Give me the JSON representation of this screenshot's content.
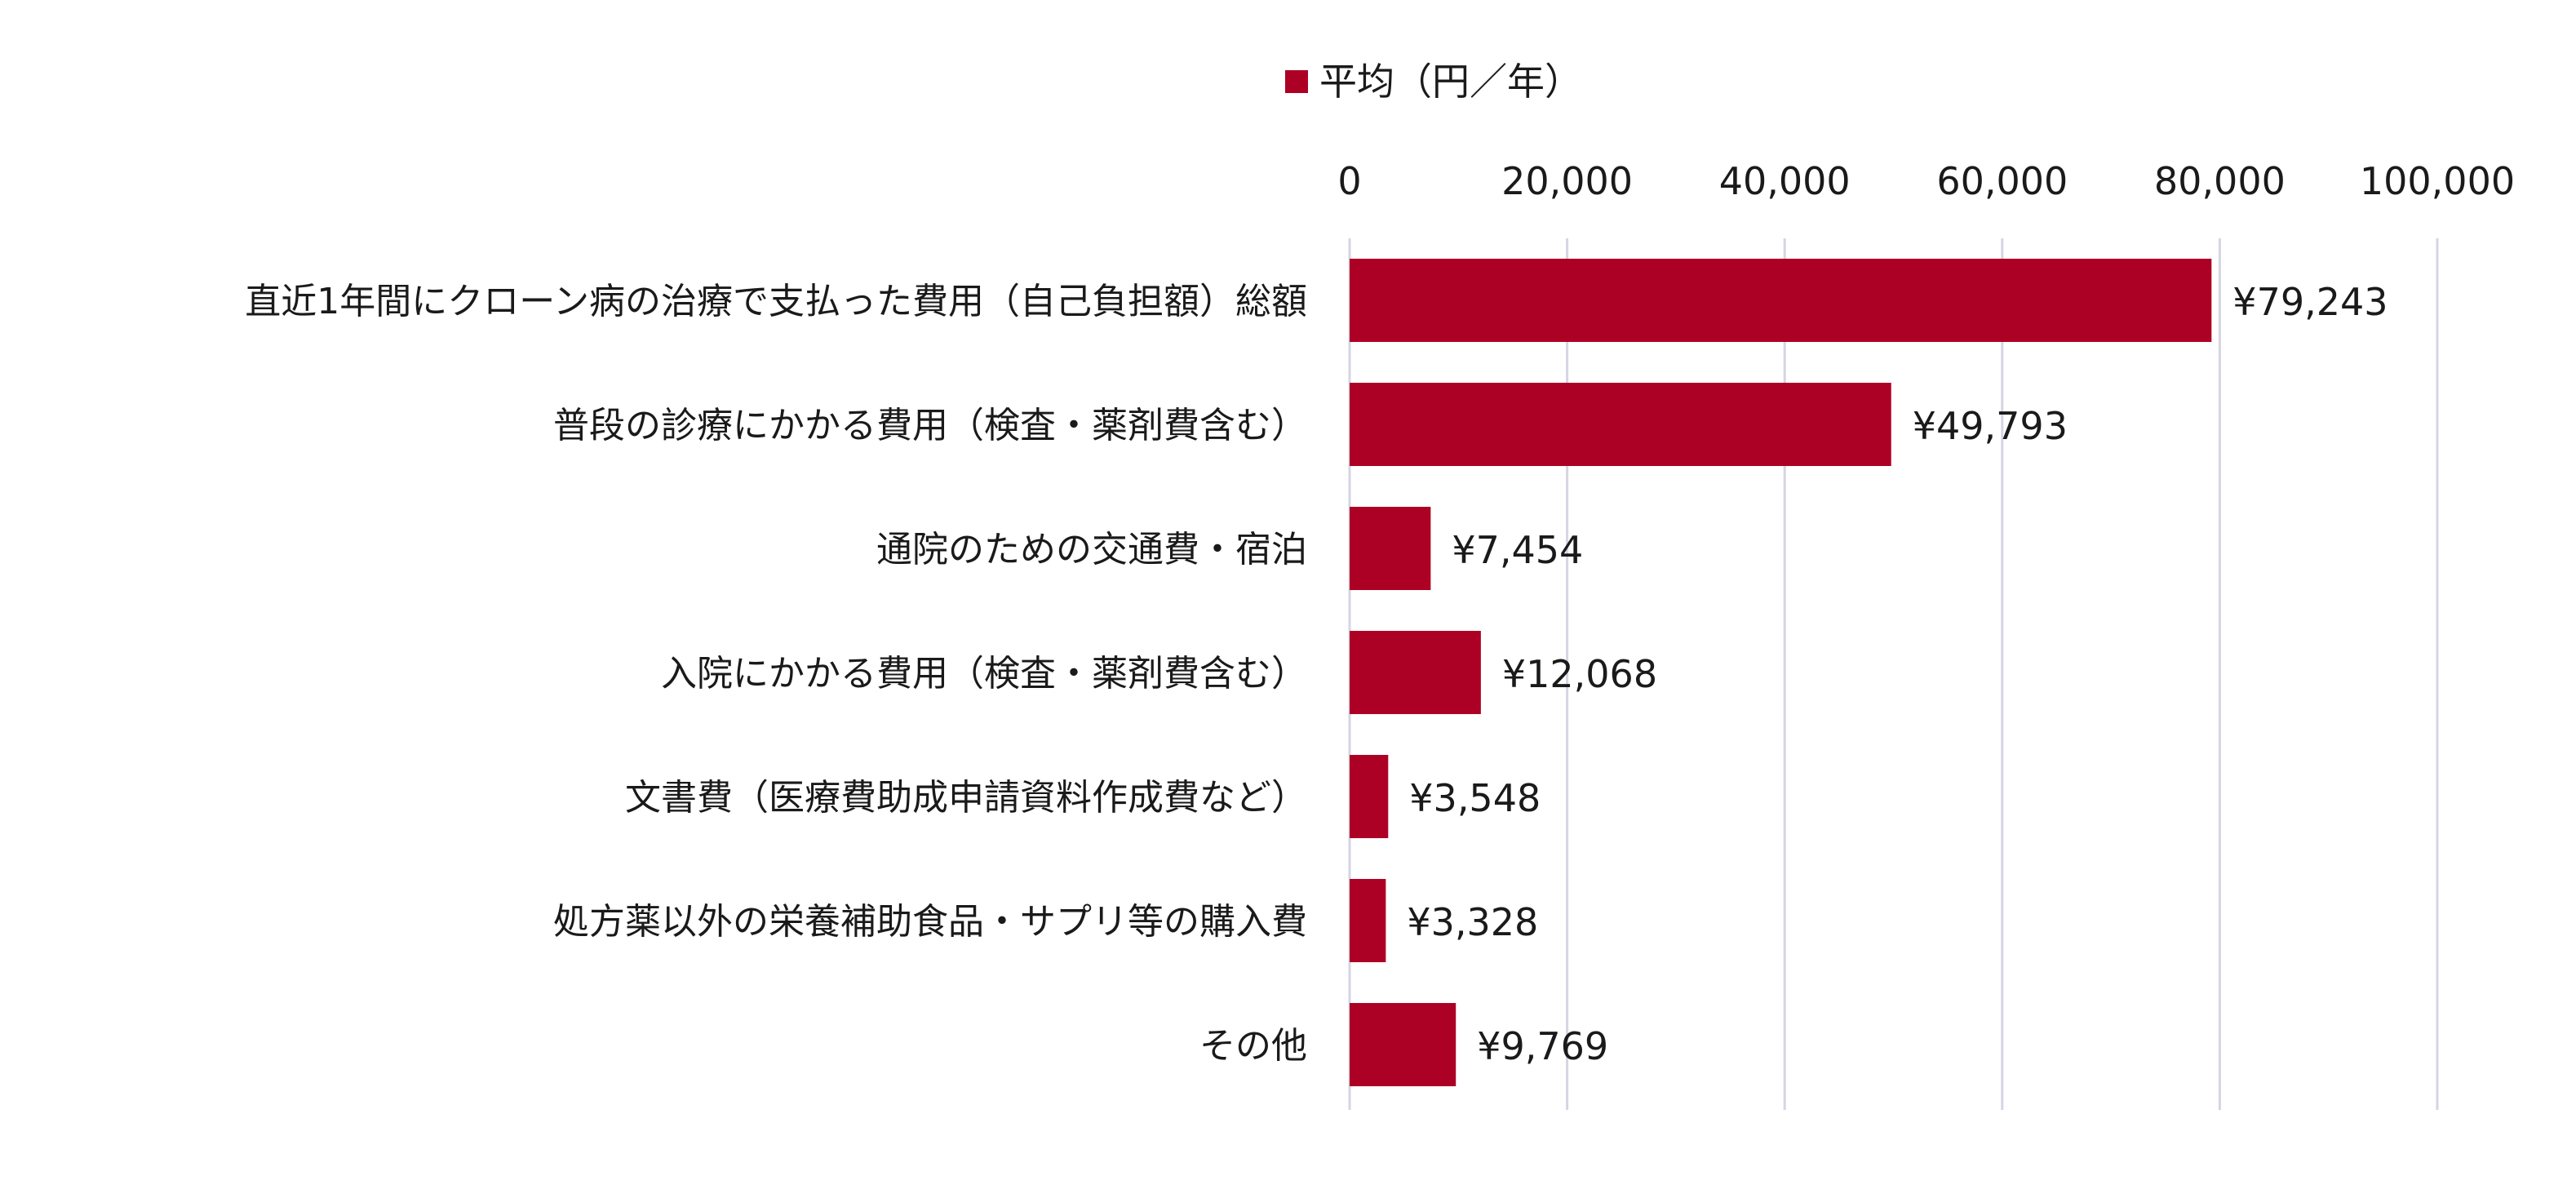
{
  "chart_data": {
    "type": "bar",
    "orientation": "horizontal",
    "categories": [
      "直近1年間にクローン病の治療で支払った費用（自己負担額）総額",
      "普段の診療にかかる費用（検査・薬剤費含む）",
      "通院のための交通費・宿泊",
      "入院にかかる費用（検査・薬剤費含む）",
      "文書費（医療費助成申請資料作成費など）",
      "処方薬以外の栄養補助食品・サプリ等の購入費",
      "その他"
    ],
    "series": [
      {
        "name": "平均（円／年）",
        "values": [
          79243,
          49793,
          7454,
          12068,
          3548,
          3328,
          9769
        ],
        "labels": [
          "¥79,243",
          "¥49,793",
          "¥7,454",
          "¥12,068",
          "¥3,548",
          "¥3,328",
          "¥9,769"
        ]
      }
    ],
    "xlim": [
      0,
      100000
    ],
    "ticks": [
      0,
      20000,
      40000,
      60000,
      80000,
      100000
    ],
    "tick_labels": [
      "0",
      "20,000",
      "40,000",
      "60,000",
      "80,000",
      "100,000"
    ],
    "axis_position": "top",
    "grid": true,
    "legend_position": "top",
    "colors": {
      "bar": "#AD0025",
      "grid": "#D5D5E3"
    }
  }
}
